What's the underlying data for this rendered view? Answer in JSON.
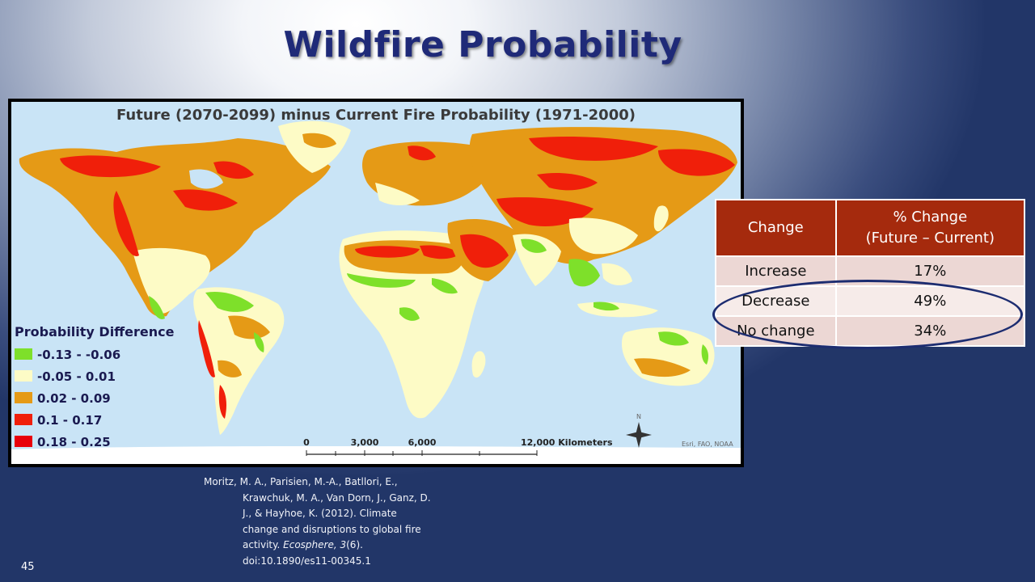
{
  "slide": {
    "title": "Wildfire Probability",
    "number": "45"
  },
  "map": {
    "title": "Future (2070-2099) minus Current Fire Probability (1971-2000)",
    "legend": {
      "title": "Probability Difference",
      "items": [
        {
          "label": "-0.13 - -0.06",
          "color": "#7ee02a"
        },
        {
          "label": "-0.05 - 0.01",
          "color": "#fdfbc6"
        },
        {
          "label": "0.02 - 0.09",
          "color": "#e59a16"
        },
        {
          "label": "0.1 - 0.17",
          "color": "#f01f0a"
        },
        {
          "label": "0.18 - 0.25",
          "color": "#e8000a"
        }
      ]
    },
    "scale_labels": [
      "0",
      "3,000",
      "6,000",
      "12,000 Kilometers"
    ],
    "north_label": "N",
    "credit": "Esri, FAO, NOAA",
    "colors": {
      "ocean": "#c9e4f6",
      "land_neutral": "#fdfbc6",
      "green": "#7ee02a",
      "orange": "#e59a16",
      "red": "#f01f0a"
    }
  },
  "table": {
    "headers": [
      "Change",
      "% Change",
      "(Future – Current)"
    ],
    "rows": [
      {
        "label": "Increase",
        "value": "17%"
      },
      {
        "label": "Decrease",
        "value": "49%"
      },
      {
        "label": "No change",
        "value": "34%"
      }
    ]
  },
  "citation": {
    "lines": [
      "Moritz,  M. A., Parisien, M.-A., Batllori, E.,",
      "Krawchuk, M. A., Van Dorn, J., Ganz, D.",
      "J., & Hayhoe, K. (2012). Climate",
      "change and disruptions to global fire",
      "activity. ",
      "doi:10.1890/es11-00345.1"
    ],
    "journal": "Ecosphere, 3",
    "issue": "(6)."
  }
}
